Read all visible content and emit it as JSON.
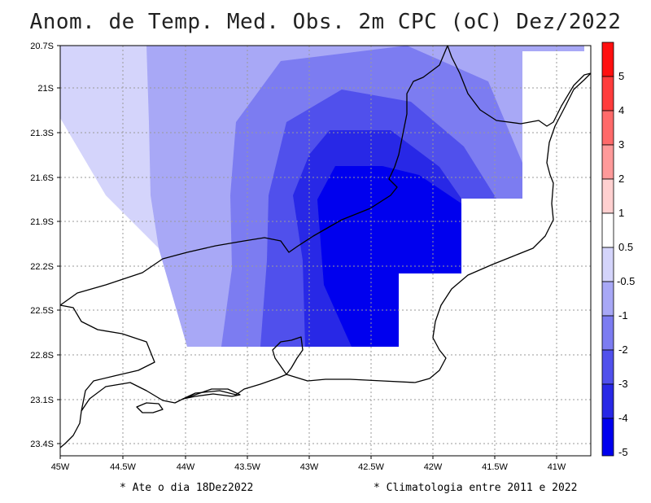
{
  "title": "Anom. de Temp. Med. Obs. 2m CPC (oC) Dez/2022",
  "lat_labels": [
    "20.7S",
    "21S",
    "21.3S",
    "21.6S",
    "21.9S",
    "22.2S",
    "22.5S",
    "22.8S",
    "23.1S",
    "23.4S"
  ],
  "lon_labels": [
    "45W",
    "44.5W",
    "44W",
    "43.5W",
    "43W",
    "42.5W",
    "42W",
    "41.5W",
    "41W"
  ],
  "colorbar": {
    "labels": [
      "5",
      "4",
      "3",
      "2",
      "1",
      "0.5",
      "-0.5",
      "-1",
      "-2",
      "-3",
      "-4",
      "-5"
    ],
    "colors": [
      "#ff1010",
      "#ff3c3c",
      "#ff6a6a",
      "#ff9a9a",
      "#ffd0d0",
      "#ffffff",
      "#d4d4fb",
      "#a8a8f6",
      "#7c7cf1",
      "#5050ec",
      "#2828e6",
      "#0000ee"
    ]
  },
  "footnotes": {
    "left": "* Ate o dia 18Dez2022",
    "right": "* Climatologia entre 2011 e 2022"
  },
  "chart_data": {
    "type": "heatmap",
    "title": "Anom. de Temp. Med. Obs. 2m CPC (oC) Dez/2022",
    "variable": "anomalia de temperatura media observada a 2m (oC)",
    "lon_range": [
      -45,
      -40.7
    ],
    "lat_range": [
      -23.5,
      -20.7
    ],
    "grid": true,
    "anomaly_levels": [
      {
        "range": "-0.5 a -1",
        "color": "#d4d4fb"
      },
      {
        "range": "-1 a -2",
        "color": "#a8a8f6"
      },
      {
        "range": "-2 a -3",
        "color": "#7c7cf1"
      },
      {
        "range": "-3 a -4",
        "color": "#5050ec"
      },
      {
        "range": "-4 a -5",
        "color": "#2828e6"
      },
      {
        "range": "< -5",
        "color": "#0000ee"
      }
    ],
    "minimum_center": {
      "lon": -42.5,
      "lat": -22.2,
      "anomaly": "< -5"
    }
  }
}
